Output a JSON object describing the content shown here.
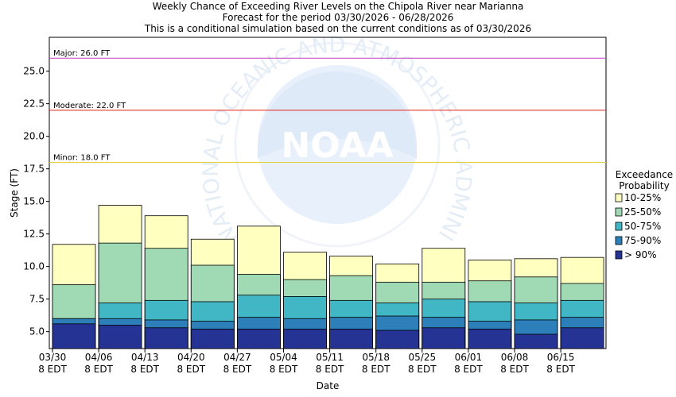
{
  "chart_data": {
    "type": "bar",
    "title": "Weekly Chance of Exceeding River Levels on the Chipola River near Marianna",
    "subtitle_1": "Forecast for the period 03/30/2026 - 06/28/2026",
    "subtitle_2": "This is a conditional simulation based on the current conditions as of 03/30/2026",
    "xlabel": "Date",
    "ylabel": "Stage (FT)",
    "ylim": [
      3.7,
      27.6
    ],
    "yticks": [
      5.0,
      7.5,
      10.0,
      12.5,
      15.0,
      17.5,
      20.0,
      22.5,
      25.0
    ],
    "ytick_labels": [
      "5.0",
      "7.5",
      "10.0",
      "12.5",
      "15.0",
      "17.5",
      "20.0",
      "22.5",
      "25.0"
    ],
    "xtick_labels": [
      {
        "date": "03/30",
        "tz": "8 EDT"
      },
      {
        "date": "04/06",
        "tz": "8 EDT"
      },
      {
        "date": "04/13",
        "tz": "8 EDT"
      },
      {
        "date": "04/20",
        "tz": "8 EDT"
      },
      {
        "date": "04/27",
        "tz": "8 EDT"
      },
      {
        "date": "05/04",
        "tz": "8 EDT"
      },
      {
        "date": "05/11",
        "tz": "8 EDT"
      },
      {
        "date": "05/18",
        "tz": "8 EDT"
      },
      {
        "date": "05/25",
        "tz": "8 EDT"
      },
      {
        "date": "06/01",
        "tz": "8 EDT"
      },
      {
        "date": "06/08",
        "tz": "8 EDT"
      },
      {
        "date": "06/15",
        "tz": "8 EDT"
      }
    ],
    "grid": false,
    "thresholds": [
      {
        "label": "Major: 26.0 FT",
        "value": 26.0,
        "color": "#c040c0"
      },
      {
        "label": "Moderate: 22.0 FT",
        "value": 22.0,
        "color": "#e02020"
      },
      {
        "label": "Minor: 18.0 FT",
        "value": 18.0,
        "color": "#e0d040"
      }
    ],
    "legend": {
      "title_line1": "Exceedance",
      "title_line2": "Probability",
      "placement": "right",
      "entries": [
        {
          "label": "10-25%",
          "color": "#ffffc0"
        },
        {
          "label": "25-50%",
          "color": "#a0dab4"
        },
        {
          "label": "50-75%",
          "color": "#41b6c4"
        },
        {
          "label": "75-90%",
          "color": "#2c7fb8"
        },
        {
          "label": "> 90%",
          "color": "#253494"
        }
      ]
    },
    "weeks": [
      "03/30",
      "04/06",
      "04/13",
      "04/20",
      "04/27",
      "05/04",
      "05/11",
      "05/18",
      "05/25",
      "06/01",
      "06/08",
      "06/15"
    ],
    "series": [
      {
        "name": "> 90%",
        "color": "#253494",
        "values": [
          5.6,
          5.5,
          5.3,
          5.2,
          5.2,
          5.2,
          5.2,
          5.1,
          5.3,
          5.2,
          4.8,
          5.3
        ]
      },
      {
        "name": "75-90%",
        "color": "#2c7fb8",
        "values": [
          6.0,
          6.0,
          5.9,
          5.8,
          6.1,
          6.0,
          6.1,
          6.2,
          6.1,
          5.8,
          5.9,
          6.1
        ]
      },
      {
        "name": "50-75%",
        "color": "#41b6c4",
        "values": [
          6.0,
          7.2,
          7.4,
          7.3,
          7.8,
          7.7,
          7.4,
          7.2,
          7.5,
          7.3,
          7.2,
          7.4
        ]
      },
      {
        "name": "25-50%",
        "color": "#a0dab4",
        "values": [
          8.6,
          11.8,
          11.4,
          10.1,
          9.4,
          9.0,
          9.3,
          8.8,
          8.8,
          8.9,
          9.2,
          8.7
        ]
      },
      {
        "name": "10-25%",
        "color": "#ffffc0",
        "values": [
          11.7,
          14.7,
          13.9,
          12.1,
          13.1,
          11.1,
          10.8,
          10.2,
          11.4,
          10.5,
          10.6,
          10.7
        ]
      }
    ],
    "watermark": {
      "logo_text": "NOAA",
      "ring_text": "NATIONAL OCEANIC AND ATMOSPHERIC ADMINISTRATION"
    }
  }
}
